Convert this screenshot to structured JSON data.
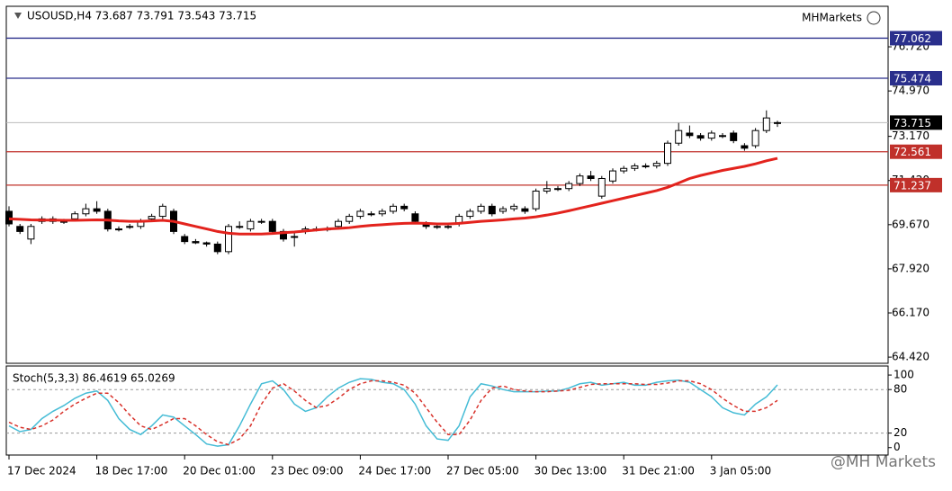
{
  "chart_data": [
    {
      "type": "candlestick",
      "title": "USOUSD,H4 73.687 73.791 73.543 73.715",
      "brand": "MHMarkets",
      "watermark": "@MH Markets",
      "categories": [
        "17 Dec 2024",
        null,
        null,
        null,
        null,
        null,
        null,
        null,
        "18 Dec 17:00",
        null,
        null,
        null,
        null,
        null,
        null,
        null,
        "20 Dec 01:00",
        null,
        null,
        null,
        null,
        null,
        null,
        null,
        "23 Dec 09:00",
        null,
        null,
        null,
        null,
        null,
        null,
        null,
        "24 Dec 17:00",
        null,
        null,
        null,
        null,
        null,
        null,
        null,
        "27 Dec 05:00",
        null,
        null,
        null,
        null,
        null,
        null,
        null,
        "30 Dec 13:00",
        null,
        null,
        null,
        null,
        null,
        null,
        null,
        "31 Dec 21:00",
        null,
        null,
        null,
        null,
        null,
        null,
        null,
        "3 Jan 05:00",
        null,
        null,
        null,
        null,
        null,
        null
      ],
      "open": [
        70.2,
        69.6,
        69.1,
        69.8,
        69.8,
        69.8,
        69.9,
        70.1,
        70.3,
        70.2,
        69.5,
        69.6,
        69.6,
        69.9,
        70.0,
        70.2,
        69.2,
        69.0,
        68.95,
        68.9,
        68.6,
        69.6,
        69.5,
        69.8,
        69.8,
        69.4,
        69.2,
        69.4,
        69.5,
        69.5,
        69.6,
        69.8,
        70.0,
        70.1,
        70.1,
        70.2,
        70.4,
        70.1,
        69.7,
        69.6,
        69.6,
        69.7,
        70.0,
        70.2,
        70.4,
        70.2,
        70.3,
        70.3,
        70.3,
        71.0,
        71.1,
        71.1,
        71.3,
        71.6,
        70.8,
        71.4,
        71.8,
        71.9,
        72.0,
        72.0,
        72.1,
        72.9,
        73.3,
        73.2,
        73.1,
        73.2,
        73.3,
        72.8,
        72.8,
        73.4,
        73.687
      ],
      "high": [
        70.4,
        69.7,
        69.7,
        70.0,
        70.0,
        69.9,
        70.2,
        70.5,
        70.6,
        70.3,
        69.6,
        69.7,
        69.9,
        70.1,
        70.5,
        70.3,
        69.3,
        69.1,
        69.0,
        69.0,
        69.7,
        69.8,
        69.9,
        69.9,
        69.9,
        69.5,
        69.4,
        69.6,
        69.6,
        69.6,
        69.9,
        70.1,
        70.3,
        70.2,
        70.3,
        70.5,
        70.5,
        70.2,
        69.8,
        69.7,
        69.7,
        70.1,
        70.3,
        70.5,
        70.5,
        70.4,
        70.5,
        70.4,
        71.1,
        71.4,
        71.2,
        71.4,
        71.7,
        71.8,
        71.6,
        71.9,
        72.0,
        72.1,
        72.1,
        72.2,
        73.0,
        73.7,
        73.6,
        73.3,
        73.4,
        73.3,
        73.4,
        72.9,
        73.5,
        74.2,
        73.791
      ],
      "low": [
        69.6,
        69.3,
        68.9,
        69.7,
        69.7,
        69.7,
        69.8,
        70.0,
        70.1,
        69.4,
        69.4,
        69.5,
        69.5,
        69.8,
        69.9,
        69.3,
        68.9,
        68.9,
        68.8,
        68.5,
        68.5,
        69.5,
        69.4,
        69.7,
        69.3,
        69.0,
        68.8,
        69.3,
        69.4,
        69.4,
        69.5,
        69.7,
        69.9,
        70.0,
        70.0,
        70.1,
        70.2,
        69.7,
        69.5,
        69.5,
        69.5,
        69.6,
        69.9,
        70.1,
        70.0,
        70.1,
        70.2,
        70.1,
        70.2,
        70.9,
        71.0,
        71.0,
        71.2,
        71.4,
        70.7,
        71.3,
        71.7,
        71.8,
        71.9,
        71.9,
        72.0,
        72.8,
        73.1,
        73.0,
        73.0,
        73.1,
        72.9,
        72.6,
        72.7,
        73.3,
        73.543
      ],
      "close": [
        69.7,
        69.4,
        69.6,
        69.9,
        69.9,
        69.8,
        70.1,
        70.3,
        70.2,
        69.5,
        69.5,
        69.6,
        69.8,
        70.0,
        70.4,
        69.4,
        69.0,
        68.95,
        68.9,
        68.6,
        69.6,
        69.6,
        69.8,
        69.8,
        69.4,
        69.1,
        69.2,
        69.5,
        69.5,
        69.5,
        69.8,
        70.0,
        70.2,
        70.1,
        70.2,
        70.4,
        70.3,
        69.8,
        69.6,
        69.6,
        69.6,
        70.0,
        70.2,
        70.4,
        70.1,
        70.3,
        70.4,
        70.2,
        71.0,
        71.1,
        71.1,
        71.3,
        71.6,
        71.5,
        71.5,
        71.8,
        71.9,
        72.0,
        72.0,
        72.1,
        72.9,
        73.4,
        73.2,
        73.1,
        73.3,
        73.2,
        73.0,
        72.7,
        73.4,
        73.9,
        73.715
      ],
      "ma": {
        "color": "#e3231d",
        "values": [
          69.9,
          69.88,
          69.86,
          69.85,
          69.85,
          69.84,
          69.84,
          69.85,
          69.86,
          69.85,
          69.82,
          69.8,
          69.8,
          69.82,
          69.84,
          69.8,
          69.7,
          69.6,
          69.5,
          69.4,
          69.33,
          69.3,
          69.3,
          69.3,
          69.32,
          69.35,
          69.38,
          69.42,
          69.46,
          69.5,
          69.52,
          69.55,
          69.6,
          69.64,
          69.67,
          69.7,
          69.72,
          69.73,
          69.72,
          69.7,
          69.7,
          69.72,
          69.76,
          69.8,
          69.83,
          69.86,
          69.9,
          69.93,
          69.98,
          70.05,
          70.13,
          70.22,
          70.32,
          70.42,
          70.52,
          70.62,
          70.72,
          70.82,
          70.92,
          71.02,
          71.15,
          71.32,
          71.5,
          71.62,
          71.72,
          71.82,
          71.9,
          71.98,
          72.08,
          72.2,
          72.3
        ]
      },
      "levels": [
        {
          "value": 77.062,
          "color": "#2a2f8c"
        },
        {
          "value": 75.474,
          "color": "#2a2f8c"
        },
        {
          "value": 73.715,
          "color": "#000000"
        },
        {
          "value": 72.561,
          "color": "#c0302a"
        },
        {
          "value": 71.237,
          "color": "#c0302a"
        }
      ],
      "ylim": [
        64.21,
        78.29
      ],
      "yticks": [
        {
          "value": 76.72,
          "label": "76.720"
        },
        {
          "value": 74.97,
          "label": "74.970"
        },
        {
          "value": 73.17,
          "label": "73.170"
        },
        {
          "value": 71.42,
          "label": "71.420"
        },
        {
          "value": 69.67,
          "label": "69.670"
        },
        {
          "value": 67.92,
          "label": "67.920"
        },
        {
          "value": 66.17,
          "label": "66.170"
        },
        {
          "value": 64.42,
          "label": "64.420"
        }
      ]
    },
    {
      "type": "line",
      "title": "Stoch(5,3,3) 86.4619 65.0269",
      "series": [
        {
          "color": "#45bcd6",
          "dash": false,
          "values": [
            30,
            22,
            25,
            40,
            50,
            58,
            68,
            75,
            78,
            65,
            40,
            25,
            18,
            30,
            45,
            42,
            30,
            18,
            5,
            2,
            4,
            30,
            60,
            88,
            92,
            80,
            60,
            50,
            55,
            70,
            82,
            90,
            95,
            94,
            90,
            88,
            80,
            60,
            30,
            12,
            10,
            30,
            70,
            88,
            85,
            80,
            77,
            77,
            77,
            78,
            78,
            82,
            88,
            90,
            86,
            88,
            90,
            86,
            86,
            90,
            92,
            93,
            90,
            80,
            70,
            55,
            48,
            45,
            60,
            70,
            86.46
          ]
        },
        {
          "color": "#d8312a",
          "dash": true,
          "values": [
            35,
            28,
            25,
            30,
            38,
            50,
            60,
            68,
            75,
            75,
            62,
            45,
            30,
            25,
            32,
            40,
            40,
            30,
            18,
            8,
            4,
            12,
            30,
            60,
            82,
            88,
            78,
            65,
            55,
            58,
            68,
            80,
            88,
            92,
            92,
            90,
            86,
            75,
            55,
            35,
            18,
            18,
            38,
            65,
            82,
            85,
            80,
            78,
            77,
            77,
            78,
            79,
            83,
            87,
            88,
            88,
            88,
            88,
            87,
            87,
            89,
            92,
            92,
            88,
            80,
            68,
            58,
            50,
            50,
            55,
            65.03
          ]
        }
      ],
      "levels": [
        80,
        20
      ],
      "ylim": [
        -9,
        110
      ],
      "yticks": [
        100,
        80,
        20,
        0
      ]
    }
  ]
}
